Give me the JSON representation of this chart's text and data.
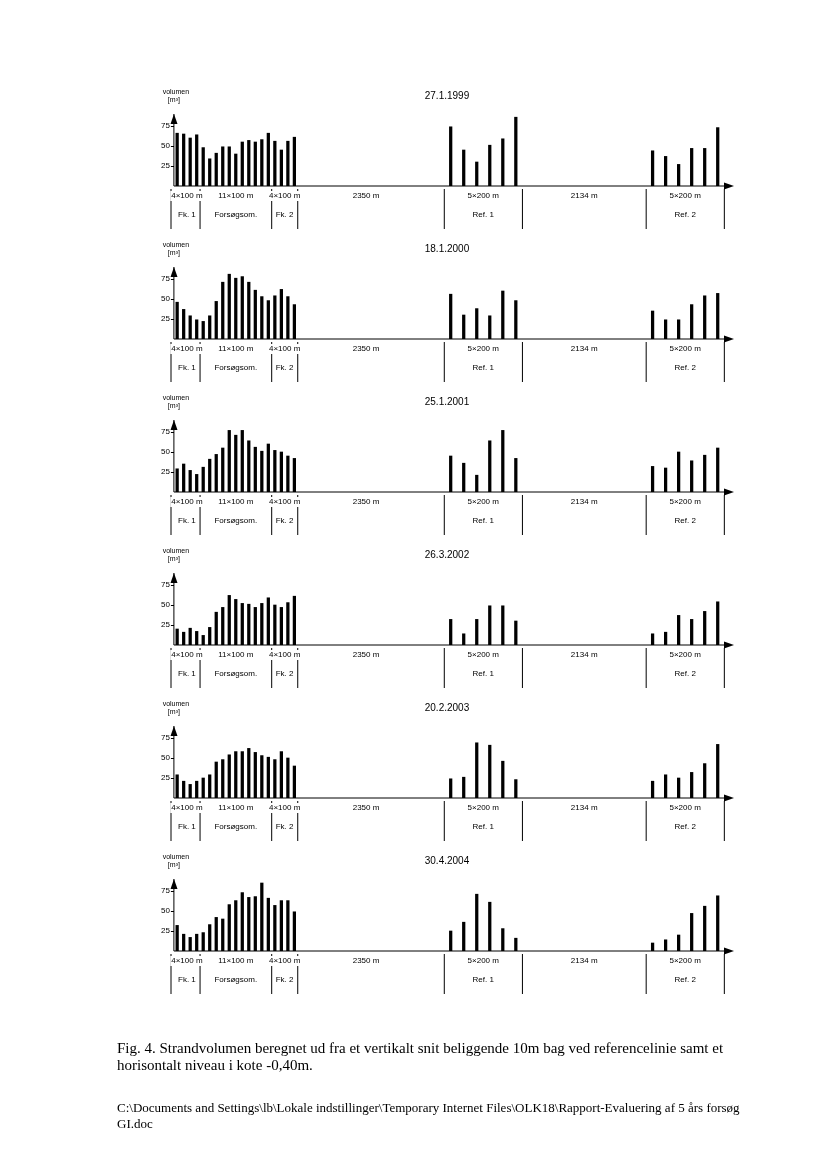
{
  "chart_data": [
    {
      "type": "bar",
      "title": "27.1.1999",
      "ylabel": "volumen [m³]",
      "color": "#000000",
      "ylim": [
        0,
        90
      ],
      "yticks": [
        25,
        50,
        75
      ],
      "tick_labels": "y",
      "categories": [
        null,
        null,
        null,
        null,
        null,
        null,
        null,
        null,
        null,
        null,
        null,
        null,
        null,
        null,
        null,
        null,
        null,
        null,
        null,
        null,
        null,
        null,
        null,
        null,
        null,
        null,
        null,
        null,
        null,
        null,
        null,
        null,
        null,
        null,
        null,
        null,
        null,
        null,
        null,
        null,
        null,
        null,
        null,
        null,
        null,
        null,
        null,
        null,
        null,
        null,
        null,
        null,
        null,
        null,
        null,
        null,
        null,
        null,
        null,
        null,
        null,
        null,
        null,
        null,
        null,
        null,
        null,
        null,
        null,
        null,
        null,
        null,
        null,
        null,
        null,
        null,
        null,
        null,
        null,
        null,
        null,
        null,
        null,
        null,
        null,
        null
      ],
      "values": [
        66,
        65,
        60,
        64,
        48,
        34,
        41,
        49,
        49,
        40,
        55,
        57,
        55,
        58,
        66,
        56,
        45,
        56,
        61,
        null,
        null,
        null,
        null,
        null,
        null,
        null,
        null,
        null,
        null,
        null,
        null,
        null,
        null,
        null,
        null,
        null,
        null,
        null,
        null,
        null,
        null,
        null,
        74,
        null,
        45,
        null,
        30,
        null,
        51,
        null,
        59,
        null,
        86,
        null,
        null,
        null,
        null,
        null,
        null,
        null,
        null,
        null,
        null,
        null,
        null,
        null,
        null,
        null,
        null,
        null,
        null,
        null,
        null,
        44,
        null,
        37,
        null,
        27,
        null,
        47,
        null,
        47,
        null,
        73,
        null,
        null
      ],
      "annotations": [
        "4×100 m",
        "11×100 m",
        "4×100 m",
        "2350 m",
        "5×200 m",
        "2134 m",
        "5×200 m",
        "Fk. 1",
        "Forsøgsom.",
        "Fk. 2",
        "Ref. 1",
        "Ref. 2"
      ]
    },
    {
      "type": "bar",
      "title": "18.1.2000",
      "ylabel": "volumen [m³]",
      "color": "#000000",
      "ylim": [
        0,
        90
      ],
      "yticks": [
        25,
        50,
        75
      ],
      "tick_labels": "y",
      "categories": [
        null,
        null,
        null,
        null,
        null,
        null,
        null,
        null,
        null,
        null,
        null,
        null,
        null,
        null,
        null,
        null,
        null,
        null,
        null,
        null,
        null,
        null,
        null,
        null,
        null,
        null,
        null,
        null,
        null,
        null,
        null,
        null,
        null,
        null,
        null,
        null,
        null,
        null,
        null,
        null,
        null,
        null,
        null,
        null,
        null,
        null,
        null,
        null,
        null,
        null,
        null,
        null,
        null,
        null,
        null,
        null,
        null,
        null,
        null,
        null,
        null,
        null,
        null,
        null,
        null,
        null,
        null,
        null,
        null,
        null,
        null,
        null,
        null,
        null,
        null,
        null,
        null,
        null,
        null,
        null,
        null,
        null,
        null,
        null,
        null,
        null
      ],
      "values": [
        46,
        37,
        29,
        24,
        22,
        29,
        47,
        71,
        81,
        76,
        78,
        71,
        61,
        53,
        48,
        54,
        62,
        53,
        43,
        null,
        null,
        null,
        null,
        null,
        null,
        null,
        null,
        null,
        null,
        null,
        null,
        null,
        null,
        null,
        null,
        null,
        null,
        null,
        null,
        null,
        null,
        null,
        56,
        null,
        30,
        null,
        38,
        null,
        29,
        null,
        60,
        null,
        48,
        null,
        null,
        null,
        null,
        null,
        null,
        null,
        null,
        null,
        null,
        null,
        null,
        null,
        null,
        null,
        null,
        null,
        null,
        null,
        null,
        35,
        null,
        24,
        null,
        24,
        null,
        43,
        null,
        54,
        null,
        57,
        null,
        null
      ],
      "annotations": [
        "4×100 m",
        "11×100 m",
        "4×100 m",
        "2350 m",
        "5×200 m",
        "2134 m",
        "5×200 m",
        "Fk. 1",
        "Forsøgsom.",
        "Fk. 2",
        "Ref. 1",
        "Ref. 2"
      ]
    },
    {
      "type": "bar",
      "title": "25.1.2001",
      "ylabel": "volumen [m³]",
      "color": "#000000",
      "ylim": [
        0,
        90
      ],
      "yticks": [
        25,
        50,
        75
      ],
      "tick_labels": "y",
      "categories": [
        null,
        null,
        null,
        null,
        null,
        null,
        null,
        null,
        null,
        null,
        null,
        null,
        null,
        null,
        null,
        null,
        null,
        null,
        null,
        null,
        null,
        null,
        null,
        null,
        null,
        null,
        null,
        null,
        null,
        null,
        null,
        null,
        null,
        null,
        null,
        null,
        null,
        null,
        null,
        null,
        null,
        null,
        null,
        null,
        null,
        null,
        null,
        null,
        null,
        null,
        null,
        null,
        null,
        null,
        null,
        null,
        null,
        null,
        null,
        null,
        null,
        null,
        null,
        null,
        null,
        null,
        null,
        null,
        null,
        null,
        null,
        null,
        null,
        null,
        null,
        null,
        null,
        null,
        null,
        null,
        null,
        null,
        null,
        null,
        null,
        null
      ],
      "values": [
        29,
        35,
        27,
        22,
        31,
        41,
        47,
        55,
        77,
        71,
        77,
        64,
        56,
        51,
        60,
        52,
        50,
        45,
        42,
        null,
        null,
        null,
        null,
        null,
        null,
        null,
        null,
        null,
        null,
        null,
        null,
        null,
        null,
        null,
        null,
        null,
        null,
        null,
        null,
        null,
        null,
        null,
        45,
        null,
        36,
        null,
        21,
        null,
        64,
        null,
        77,
        null,
        42,
        null,
        null,
        null,
        null,
        null,
        null,
        null,
        null,
        null,
        null,
        null,
        null,
        null,
        null,
        null,
        null,
        null,
        null,
        null,
        null,
        32,
        null,
        30,
        null,
        50,
        null,
        39,
        null,
        46,
        null,
        55,
        null,
        null
      ],
      "annotations": [
        "4×100 m",
        "11×100 m",
        "4×100 m",
        "2350 m",
        "5×200 m",
        "2134 m",
        "5×200 m",
        "Fk. 1",
        "Forsøgsom.",
        "Fk. 2",
        "Ref. 1",
        "Ref. 2"
      ]
    },
    {
      "type": "bar",
      "title": "26.3.2002",
      "ylabel": "volumen [m³]",
      "color": "#000000",
      "ylim": [
        0,
        90
      ],
      "yticks": [
        25,
        50,
        75
      ],
      "tick_labels": "y",
      "categories": [
        null,
        null,
        null,
        null,
        null,
        null,
        null,
        null,
        null,
        null,
        null,
        null,
        null,
        null,
        null,
        null,
        null,
        null,
        null,
        null,
        null,
        null,
        null,
        null,
        null,
        null,
        null,
        null,
        null,
        null,
        null,
        null,
        null,
        null,
        null,
        null,
        null,
        null,
        null,
        null,
        null,
        null,
        null,
        null,
        null,
        null,
        null,
        null,
        null,
        null,
        null,
        null,
        null,
        null,
        null,
        null,
        null,
        null,
        null,
        null,
        null,
        null,
        null,
        null,
        null,
        null,
        null,
        null,
        null,
        null,
        null,
        null,
        null,
        null,
        null,
        null,
        null,
        null,
        null,
        null,
        null,
        null,
        null,
        null,
        null,
        null
      ],
      "values": [
        20,
        16,
        21,
        17,
        12,
        22,
        41,
        47,
        62,
        57,
        52,
        51,
        47,
        52,
        59,
        50,
        47,
        53,
        61,
        null,
        null,
        null,
        null,
        null,
        null,
        null,
        null,
        null,
        null,
        null,
        null,
        null,
        null,
        null,
        null,
        null,
        null,
        null,
        null,
        null,
        null,
        null,
        32,
        null,
        14,
        null,
        32,
        null,
        49,
        null,
        49,
        null,
        30,
        null,
        null,
        null,
        null,
        null,
        null,
        null,
        null,
        null,
        null,
        null,
        null,
        null,
        null,
        null,
        null,
        null,
        null,
        null,
        null,
        14,
        null,
        16,
        null,
        37,
        null,
        32,
        null,
        42,
        null,
        54,
        null,
        null
      ],
      "annotations": [
        "4×100 m",
        "11×100 m",
        "4×100 m",
        "2350 m",
        "5×200 m",
        "2134 m",
        "5×200 m",
        "Fk. 1",
        "Forsøgsom.",
        "Fk. 2",
        "Ref. 1",
        "Ref. 2"
      ]
    },
    {
      "type": "bar",
      "title": "20.2.2003",
      "ylabel": "volumen [m³]",
      "color": "#000000",
      "ylim": [
        0,
        90
      ],
      "yticks": [
        25,
        50,
        75
      ],
      "tick_labels": "y",
      "categories": [
        null,
        null,
        null,
        null,
        null,
        null,
        null,
        null,
        null,
        null,
        null,
        null,
        null,
        null,
        null,
        null,
        null,
        null,
        null,
        null,
        null,
        null,
        null,
        null,
        null,
        null,
        null,
        null,
        null,
        null,
        null,
        null,
        null,
        null,
        null,
        null,
        null,
        null,
        null,
        null,
        null,
        null,
        null,
        null,
        null,
        null,
        null,
        null,
        null,
        null,
        null,
        null,
        null,
        null,
        null,
        null,
        null,
        null,
        null,
        null,
        null,
        null,
        null,
        null,
        null,
        null,
        null,
        null,
        null,
        null,
        null,
        null,
        null,
        null,
        null,
        null,
        null,
        null,
        null,
        null,
        null,
        null,
        null,
        null,
        null,
        null
      ],
      "values": [
        29,
        21,
        17,
        21,
        25,
        29,
        45,
        48,
        54,
        58,
        58,
        62,
        57,
        53,
        51,
        48,
        58,
        50,
        40,
        null,
        null,
        null,
        null,
        null,
        null,
        null,
        null,
        null,
        null,
        null,
        null,
        null,
        null,
        null,
        null,
        null,
        null,
        null,
        null,
        null,
        null,
        null,
        24,
        null,
        26,
        null,
        69,
        null,
        66,
        null,
        46,
        null,
        23,
        null,
        null,
        null,
        null,
        null,
        null,
        null,
        null,
        null,
        null,
        null,
        null,
        null,
        null,
        null,
        null,
        null,
        null,
        null,
        null,
        21,
        null,
        29,
        null,
        25,
        null,
        32,
        null,
        43,
        null,
        67,
        null,
        null
      ],
      "annotations": [
        "4×100 m",
        "11×100 m",
        "4×100 m",
        "2350 m",
        "5×200 m",
        "2134 m",
        "5×200 m",
        "Fk. 1",
        "Forsøgsom.",
        "Fk. 2",
        "Ref. 1",
        "Ref. 2"
      ]
    },
    {
      "type": "bar",
      "title": "30.4.2004",
      "ylabel": "volumen [m³]",
      "color": "#000000",
      "ylim": [
        0,
        90
      ],
      "yticks": [
        25,
        50,
        75
      ],
      "tick_labels": "y",
      "categories": [
        null,
        null,
        null,
        null,
        null,
        null,
        null,
        null,
        null,
        null,
        null,
        null,
        null,
        null,
        null,
        null,
        null,
        null,
        null,
        null,
        null,
        null,
        null,
        null,
        null,
        null,
        null,
        null,
        null,
        null,
        null,
        null,
        null,
        null,
        null,
        null,
        null,
        null,
        null,
        null,
        null,
        null,
        null,
        null,
        null,
        null,
        null,
        null,
        null,
        null,
        null,
        null,
        null,
        null,
        null,
        null,
        null,
        null,
        null,
        null,
        null,
        null,
        null,
        null,
        null,
        null,
        null,
        null,
        null,
        null,
        null,
        null,
        null,
        null,
        null,
        null,
        null,
        null,
        null,
        null,
        null,
        null,
        null,
        null,
        null,
        null
      ],
      "values": [
        32,
        21,
        17,
        21,
        23,
        33,
        42,
        40,
        58,
        63,
        73,
        67,
        68,
        85,
        66,
        57,
        63,
        63,
        49,
        null,
        null,
        null,
        null,
        null,
        null,
        null,
        null,
        null,
        null,
        null,
        null,
        null,
        null,
        null,
        null,
        null,
        null,
        null,
        null,
        null,
        null,
        null,
        25,
        null,
        36,
        null,
        71,
        null,
        61,
        null,
        28,
        null,
        16,
        null,
        null,
        null,
        null,
        null,
        null,
        null,
        null,
        null,
        null,
        null,
        null,
        null,
        null,
        null,
        null,
        null,
        null,
        null,
        null,
        10,
        null,
        14,
        null,
        20,
        null,
        47,
        null,
        56,
        null,
        69,
        null,
        null
      ],
      "annotations": [
        "4×100 m",
        "11×100 m",
        "4×100 m",
        "2350 m",
        "5×200 m",
        "2134 m",
        "5×200 m",
        "Fk. 1",
        "Forsøgsom.",
        "Fk. 2",
        "Ref. 1",
        "Ref. 2",
        "Fig. 4. Strandvolumen beregnet ud fra et vertikalt snit beliggende 10m bag ved referencelinie samt et horisontalt niveau i kote -0,40m.",
        "C:\\Documents and Settings\\lb\\Lokale indstillinger\\Temporary Internet Files\\OLK18\\Rapport-Evaluering af 5 års forsøg GI.doc"
      ]
    }
  ]
}
